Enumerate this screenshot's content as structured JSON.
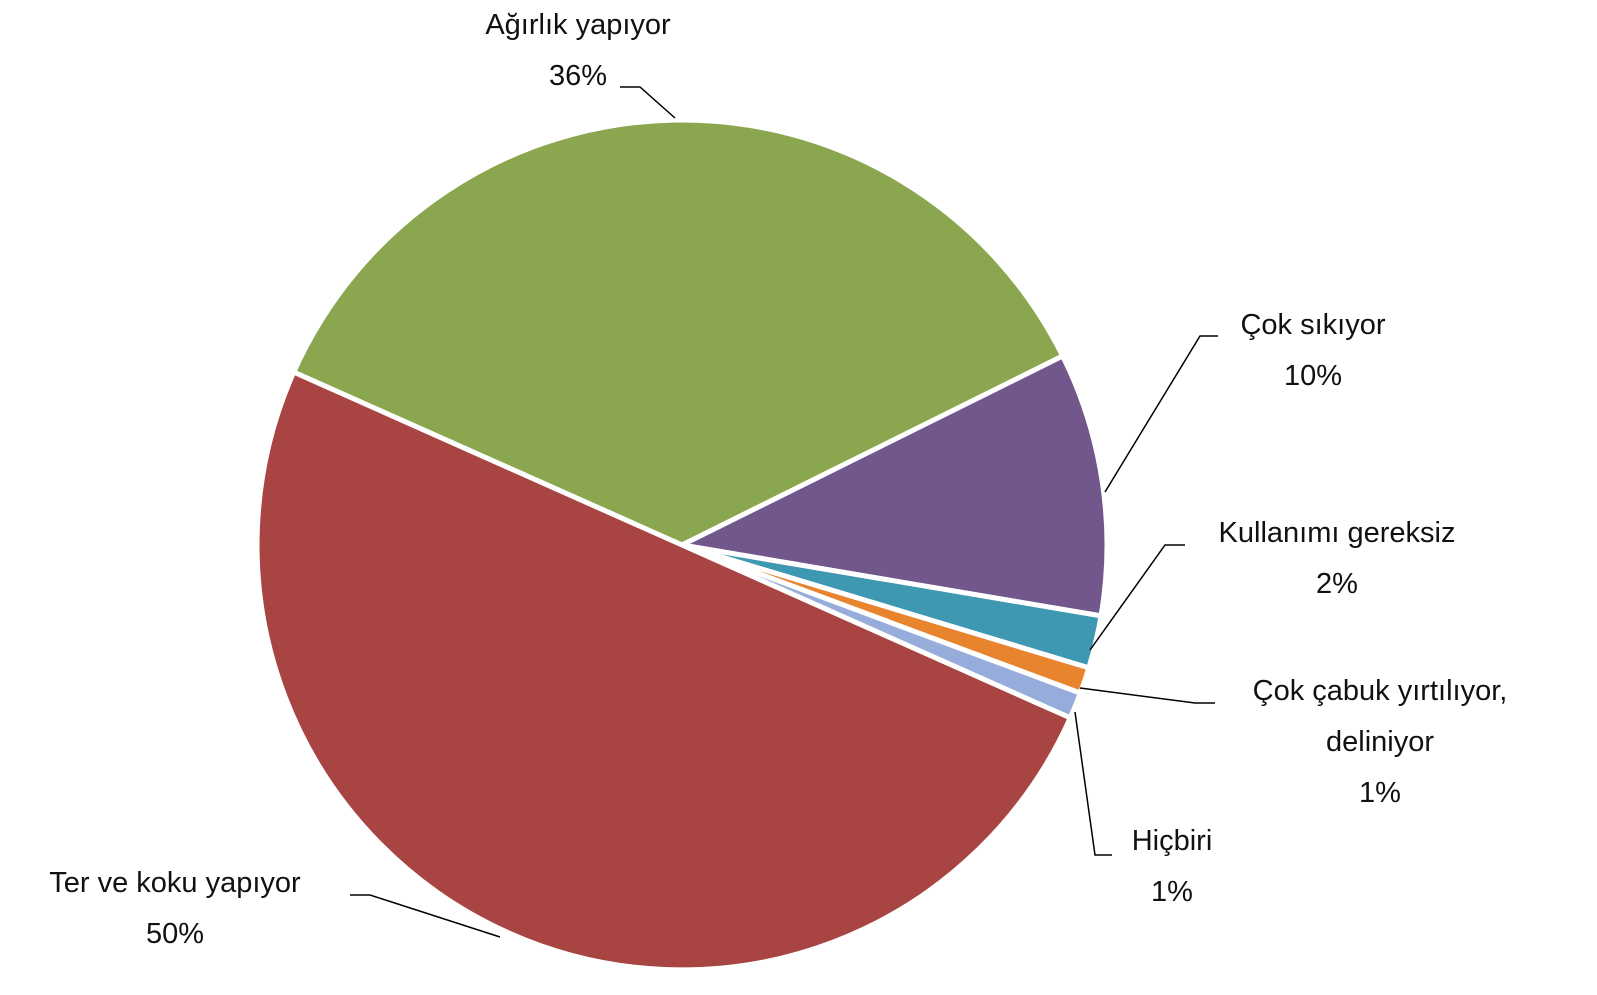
{
  "chart_data": {
    "type": "pie",
    "categories": [
      "Ağırlık yapıyor",
      "Çok sıkıyor",
      "Kullanımı gereksiz",
      "Çok çabuk yırtılıyor, deliniyor",
      "Hiçbiri",
      "Ter ve koku yapıyor"
    ],
    "values": [
      36,
      10,
      2,
      1,
      1,
      50
    ],
    "value_labels": [
      "36%",
      "10%",
      "2%",
      "1%",
      "1%",
      "50%"
    ],
    "colors": [
      "#8aa64f",
      "#71578c",
      "#3f98b1",
      "#e8842d",
      "#96addb",
      "#a84543"
    ]
  }
}
